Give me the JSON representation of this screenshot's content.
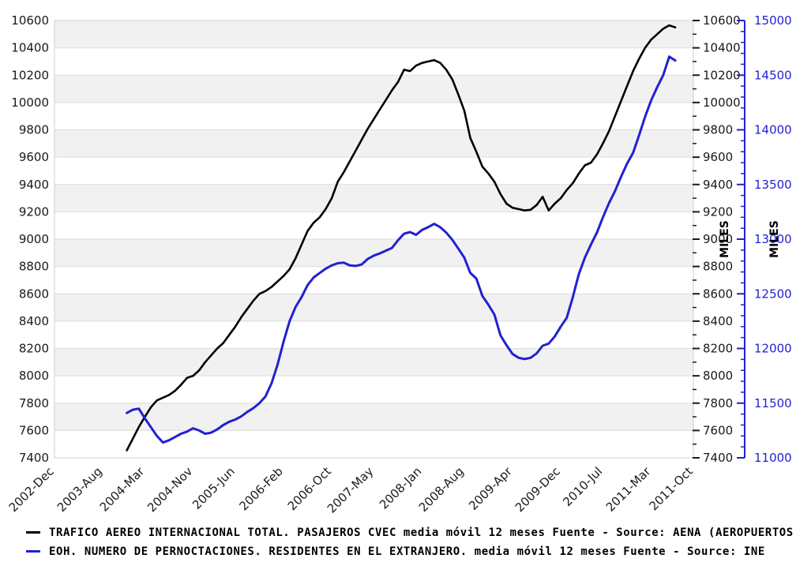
{
  "chart_data": {
    "type": "line",
    "title": "",
    "x_tick_labels": [
      "2002-Dec",
      "2003-Aug",
      "2004-Mar",
      "2004-Nov",
      "2005-Jun",
      "2006-Feb",
      "2006-Oct",
      "2007-May",
      "2008-Jan",
      "2008-Aug",
      "2009-Apr",
      "2009-Dec",
      "2010-Jul",
      "2011-Mar",
      "2011-Oct"
    ],
    "x_tick_months": [
      0,
      8,
      15,
      23,
      30,
      38,
      46,
      53,
      61,
      68,
      76,
      84,
      91,
      99,
      106
    ],
    "x_total_months": 106,
    "series_start_month": 12,
    "series_start_label": "2003-Dec",
    "series_end_label": "2011-Jul",
    "left_axis": {
      "min": 7400,
      "max": 10600,
      "step": 200,
      "color": "#1a1a1a"
    },
    "right_axis_black": {
      "min": 7400,
      "max": 10600,
      "step": 200,
      "minor_step": 100,
      "title": "MILES",
      "color": "#1a1a1a"
    },
    "right_axis_blue": {
      "min": 11000,
      "max": 15000,
      "step": 500,
      "minor_step": 100,
      "title": "MILES",
      "color": "#2121d1"
    },
    "grid": {
      "band_color": "#f1f1f1",
      "grid_color": "#dcdcdc",
      "border_color": "#cfcfcf"
    },
    "series": [
      {
        "name": "TRAFICO AEREO INTERNACIONAL TOTAL. PASAJEROS CVEC media móvil 12 meses  Fuente - Source: AENA (AEROPUERTOS",
        "color": "#000000",
        "axis": "left",
        "values": [
          7455,
          7540,
          7625,
          7700,
          7770,
          7820,
          7840,
          7860,
          7890,
          7935,
          7985,
          8000,
          8040,
          8100,
          8150,
          8200,
          8240,
          8300,
          8360,
          8430,
          8490,
          8550,
          8600,
          8620,
          8650,
          8690,
          8730,
          8780,
          8860,
          8960,
          9060,
          9120,
          9160,
          9220,
          9300,
          9420,
          9490,
          9570,
          9650,
          9730,
          9810,
          9880,
          9950,
          10020,
          10090,
          10150,
          10240,
          10230,
          10270,
          10290,
          10300,
          10310,
          10290,
          10240,
          10170,
          10060,
          9940,
          9740,
          9640,
          9530,
          9480,
          9420,
          9330,
          9260,
          9230,
          9220,
          9210,
          9215,
          9250,
          9310,
          9210,
          9260,
          9300,
          9360,
          9410,
          9480,
          9540,
          9560,
          9620,
          9700,
          9790,
          9900,
          10010,
          10120,
          10230,
          10320,
          10400,
          10460,
          10500,
          10540,
          10565,
          10550
        ]
      },
      {
        "name": "EOH. NUMERO DE PERNOCTACIONES. RESIDENTES EN EL EXTRANJERO. media móvil 12 meses  Fuente - Source: INE",
        "color": "#2121d1",
        "axis": "blue",
        "values": [
          11410,
          11440,
          11450,
          11360,
          11280,
          11200,
          11140,
          11160,
          11190,
          11220,
          11240,
          11270,
          11250,
          11220,
          11230,
          11260,
          11300,
          11330,
          11350,
          11380,
          11420,
          11455,
          11500,
          11560,
          11680,
          11850,
          12060,
          12250,
          12380,
          12470,
          12580,
          12650,
          12690,
          12730,
          12760,
          12780,
          12785,
          12760,
          12755,
          12770,
          12820,
          12850,
          12870,
          12895,
          12920,
          12990,
          13050,
          13065,
          13040,
          13085,
          13110,
          13140,
          13110,
          13060,
          12995,
          12915,
          12830,
          12690,
          12640,
          12480,
          12400,
          12310,
          12120,
          12030,
          11950,
          11915,
          11903,
          11915,
          11955,
          12025,
          12045,
          12110,
          12200,
          12280,
          12470,
          12680,
          12830,
          12950,
          13060,
          13200,
          13330,
          13440,
          13570,
          13690,
          13790,
          13950,
          14120,
          14270,
          14390,
          14500,
          14670,
          14635
        ]
      }
    ]
  },
  "legend": {
    "items": [
      {
        "label": "TRAFICO AEREO INTERNACIONAL TOTAL. PASAJEROS CVEC media móvil 12 meses  Fuente - Source: AENA (AEROPUERTOS",
        "color": "#000000"
      },
      {
        "label": "EOH. NUMERO DE PERNOCTACIONES. RESIDENTES EN EL EXTRANJERO. media móvil 12 meses  Fuente - Source: INE",
        "color": "#2121d1"
      }
    ]
  }
}
